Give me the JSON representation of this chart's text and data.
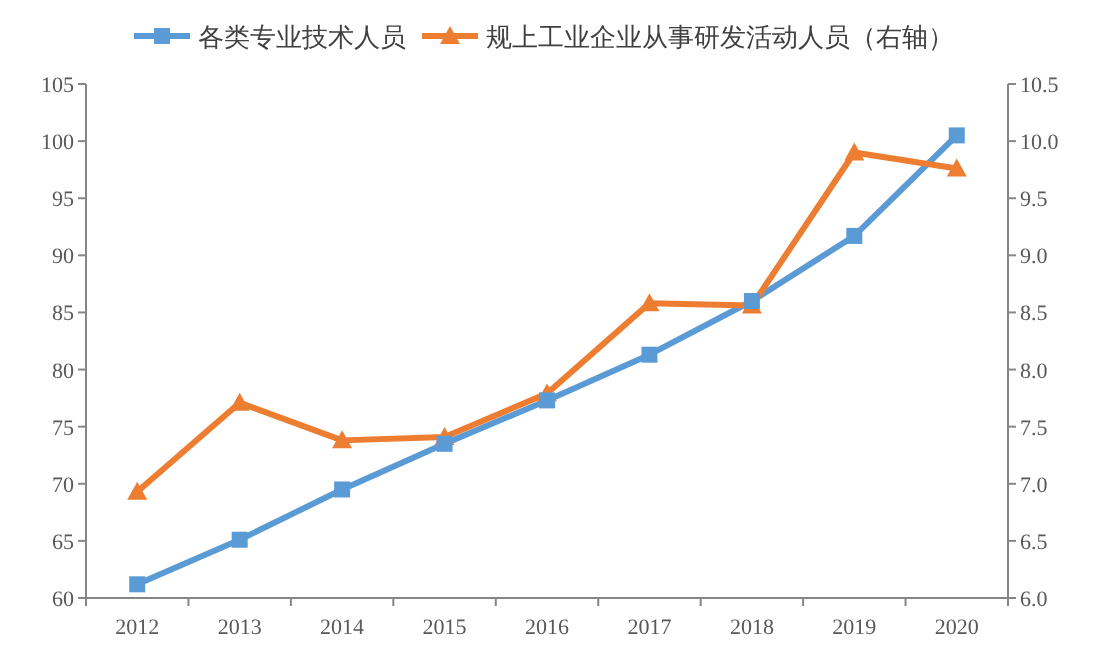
{
  "chart_data": {
    "type": "line",
    "categories": [
      "2012",
      "2013",
      "2014",
      "2015",
      "2016",
      "2017",
      "2018",
      "2019",
      "2020"
    ],
    "series": [
      {
        "name": "各类专业技术人员",
        "color": "#5b9bd5",
        "marker": "square",
        "values": [
          61.2,
          65.1,
          69.5,
          73.5,
          77.3,
          81.3,
          86.0,
          91.7,
          100.5
        ]
      },
      {
        "name": "规上工业企业从事研发活动人员（右轴）",
        "color": "#ed7d31",
        "marker": "triangle",
        "axis": "y2",
        "values": [
          6.93,
          7.71,
          7.38,
          7.41,
          7.79,
          8.58,
          8.56,
          9.9,
          9.76
        ]
      }
    ],
    "ylim": [
      60,
      105
    ],
    "yticks": [
      60,
      65,
      70,
      75,
      80,
      85,
      90,
      95,
      100,
      105
    ],
    "y2lim": [
      6,
      10.5
    ],
    "y2ticks": [
      {
        "value": 6,
        "label": "6.0"
      },
      {
        "value": 6.5,
        "label": "6.5"
      },
      {
        "value": 7,
        "label": "7.0"
      },
      {
        "value": 7.5,
        "label": "7.5"
      },
      {
        "value": 8,
        "label": "8.0"
      },
      {
        "value": 8.5,
        "label": "8.5"
      },
      {
        "value": 9,
        "label": "9.0"
      },
      {
        "value": 9.5,
        "label": "9.5"
      },
      {
        "value": 10,
        "label": "10.0"
      },
      {
        "value": 10.5,
        "label": "10.5"
      }
    ],
    "legend": "top",
    "grid": false
  }
}
